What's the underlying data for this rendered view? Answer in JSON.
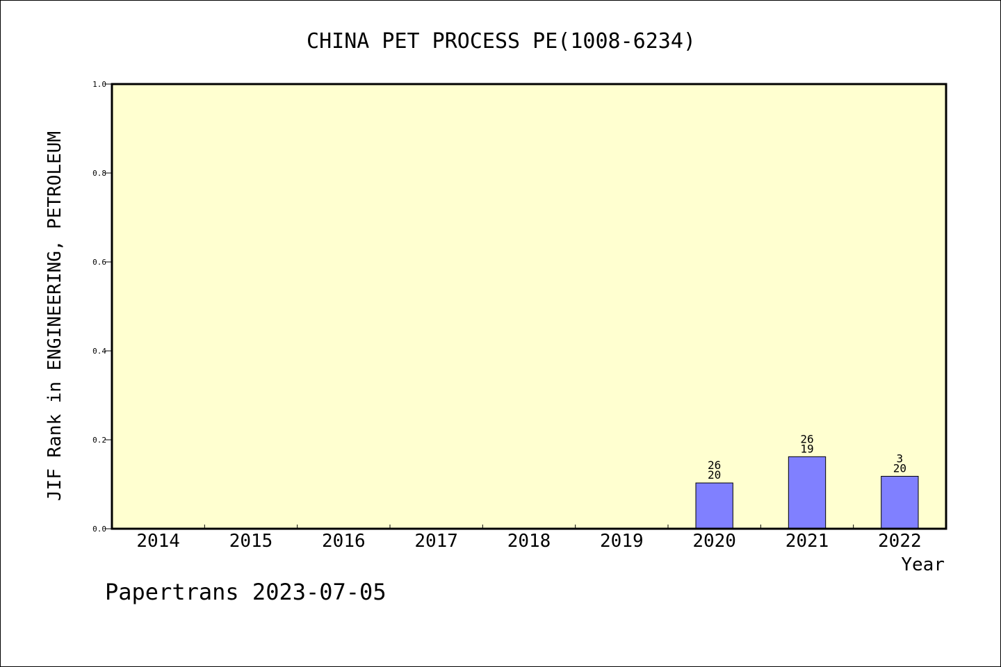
{
  "chart_data": {
    "type": "bar",
    "title": "CHINA PET PROCESS PE(1008-6234)",
    "xlabel": "Year",
    "ylabel": "JIF Rank in ENGINEERING, PETROLEUM",
    "categories": [
      "2014",
      "2015",
      "2016",
      "2017",
      "2018",
      "2019",
      "2020",
      "2021",
      "2022"
    ],
    "values": [
      null,
      null,
      null,
      null,
      null,
      null,
      0.103,
      0.162,
      0.118
    ],
    "bar_labels": [
      null,
      null,
      null,
      null,
      null,
      null,
      {
        "top": "26",
        "bottom": "20"
      },
      {
        "top": "26",
        "bottom": "19"
      },
      {
        "top": "3",
        "bottom": "20"
      }
    ],
    "ylim": [
      0,
      1.0
    ],
    "yticks": [
      "0.0",
      "0.2",
      "0.4",
      "0.6",
      "0.8",
      "1.0"
    ],
    "ytick_values": [
      0,
      0.2,
      0.4,
      0.6,
      0.8,
      1.0
    ],
    "grid": false,
    "plot_background": "#ffffd0",
    "bar_color": "#8080ff"
  },
  "footer": "Papertrans 2023-07-05"
}
